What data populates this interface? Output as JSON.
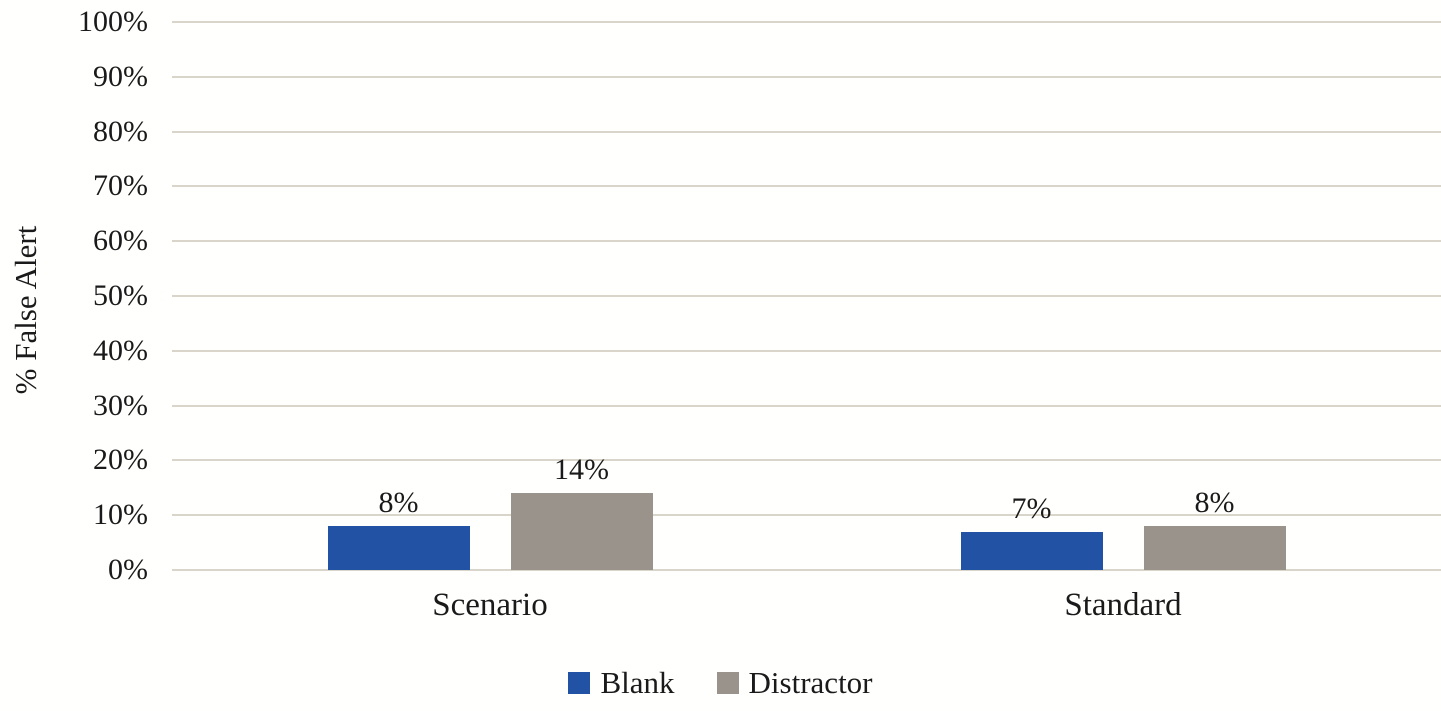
{
  "chart_data": {
    "type": "bar",
    "title": "",
    "xlabel": "",
    "ylabel": "% False Alert",
    "categories": [
      "Scenario",
      "Standard"
    ],
    "series": [
      {
        "name": "Blank",
        "color": "#2152A3",
        "values": [
          8,
          7
        ],
        "data_labels": [
          "8%",
          "7%"
        ]
      },
      {
        "name": "Distractor",
        "color": "#9A938C",
        "values": [
          14,
          8
        ],
        "data_labels": [
          "14%",
          "8%"
        ]
      }
    ],
    "y_axis": {
      "min": 0,
      "max": 100,
      "step": 10,
      "tick_labels": [
        "0%",
        "10%",
        "20%",
        "30%",
        "40%",
        "50%",
        "60%",
        "70%",
        "80%",
        "90%",
        "100%"
      ]
    },
    "grid": true,
    "legend_position": "bottom",
    "colors": {
      "gridline": "#D9D5CB",
      "text": "#1A1A1A",
      "background": "#FFFFFF"
    }
  }
}
